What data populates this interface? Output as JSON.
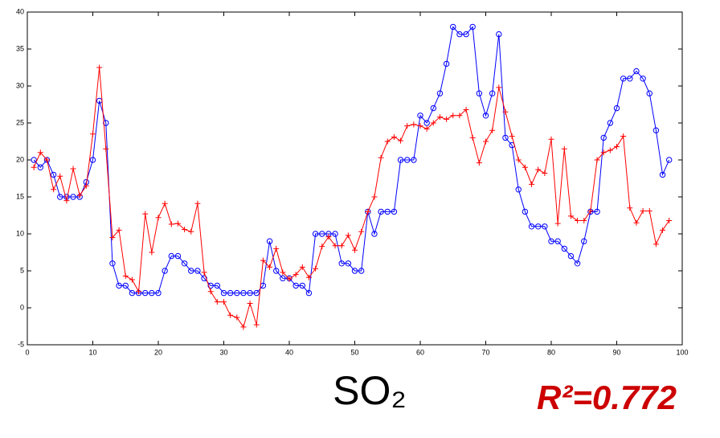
{
  "chart_data": {
    "type": "line",
    "x": [
      1,
      2,
      3,
      4,
      5,
      6,
      7,
      8,
      9,
      10,
      11,
      12,
      13,
      14,
      15,
      16,
      17,
      18,
      19,
      20,
      21,
      22,
      23,
      24,
      25,
      26,
      27,
      28,
      29,
      30,
      31,
      32,
      33,
      34,
      35,
      36,
      37,
      38,
      39,
      40,
      41,
      42,
      43,
      44,
      45,
      46,
      47,
      48,
      49,
      50,
      51,
      52,
      53,
      54,
      55,
      56,
      57,
      58,
      59,
      60,
      61,
      62,
      63,
      64,
      65,
      66,
      67,
      68,
      69,
      70,
      71,
      72,
      73,
      74,
      75,
      76,
      77,
      78,
      79,
      80,
      81,
      82,
      83,
      84,
      85,
      86,
      87,
      88,
      89,
      90,
      91,
      92,
      93,
      94,
      95,
      96,
      97,
      98
    ],
    "series": [
      {
        "color": "#0000ff",
        "marker": "circle",
        "values": [
          20,
          19,
          20,
          18,
          15,
          15,
          15,
          15,
          17,
          20,
          28,
          25,
          6,
          3,
          3,
          2,
          2,
          2,
          2,
          2,
          5,
          7,
          7,
          6,
          5,
          5,
          4,
          3,
          3,
          2,
          2,
          2,
          2,
          2,
          2,
          3,
          9,
          5,
          4,
          4,
          3,
          3,
          2,
          10,
          10,
          10,
          10,
          6,
          6,
          5,
          5,
          13,
          10,
          13,
          13,
          13,
          20,
          20,
          20,
          26,
          25,
          27,
          29,
          33,
          38,
          37,
          37,
          38,
          29,
          26,
          29,
          37,
          23,
          22,
          16,
          13,
          11,
          11,
          11,
          9,
          9,
          8,
          7,
          6,
          9,
          13,
          13,
          23,
          25,
          27,
          31,
          31,
          32,
          31,
          29,
          24,
          18,
          20
        ]
      },
      {
        "color": "#ff0000",
        "marker": "plus",
        "values": [
          19,
          21,
          20,
          16,
          17.8,
          14.5,
          18.8,
          15.2,
          16.5,
          23.5,
          32.5,
          21.5,
          9.5,
          10.5,
          4.3,
          3.8,
          2.2,
          12.7,
          7.5,
          12.2,
          14.1,
          11.3,
          11.4,
          10.6,
          10.3,
          14.1,
          4.8,
          2.2,
          0.8,
          0.8,
          -1,
          -1.3,
          -2.6,
          0.6,
          -2.3,
          6.4,
          5.5,
          8,
          4.8,
          3.9,
          4.5,
          5.5,
          4.1,
          5.3,
          8.3,
          9.6,
          8.4,
          8.4,
          9.8,
          7.8,
          10.3,
          13,
          15,
          20.3,
          22.5,
          23.1,
          22.6,
          24.6,
          24.8,
          24.6,
          24.2,
          25,
          25.8,
          25.5,
          26,
          26,
          26.8,
          23,
          19.6,
          22.5,
          24,
          29.8,
          26.5,
          23.2,
          20,
          19,
          16.7,
          18.7,
          18.2,
          22.8,
          11.4,
          21.5,
          12.4,
          11.8,
          11.8,
          13.1,
          20,
          21,
          21.3,
          21.8,
          23.2,
          13.5,
          11.5,
          13.1,
          13.1,
          8.6,
          10.5,
          11.8
        ]
      }
    ],
    "xlim": [
      0,
      100
    ],
    "xticks": [
      0,
      10,
      20,
      30,
      40,
      50,
      60,
      70,
      80,
      90,
      100
    ],
    "ylim": [
      -5,
      40
    ],
    "yticks": [
      -5,
      0,
      5,
      10,
      15,
      20,
      25,
      30,
      35,
      40
    ],
    "grid": false,
    "annotations": [
      "SO₂",
      "R²=0.772"
    ]
  }
}
